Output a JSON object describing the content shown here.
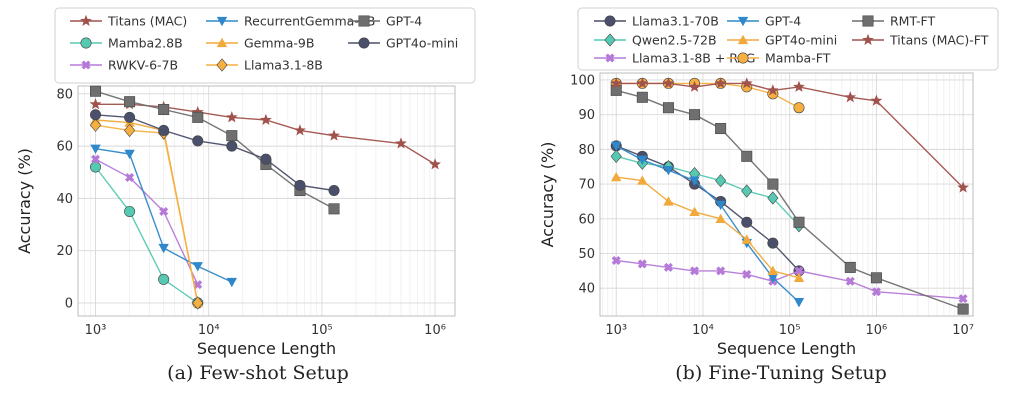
{
  "captions": [
    "(a) Few-shot Setup",
    "(b) Fine-Tuning Setup"
  ],
  "chart_data": [
    {
      "type": "line",
      "title": "",
      "xlabel": "Sequence Length",
      "ylabel": "Accuracy (%)",
      "xscale": "log",
      "xlim": [
        700,
        1500000
      ],
      "ylim": [
        -5,
        83
      ],
      "xticks": [
        1000,
        10000,
        100000,
        1000000
      ],
      "xtick_labels": [
        "10³",
        "10⁴",
        "10⁵",
        "10⁶"
      ],
      "yticks": [
        0,
        20,
        40,
        60,
        80
      ],
      "ytick_labels": [
        "0",
        "20",
        "40",
        "60",
        "80"
      ],
      "grid": true,
      "legend": "top, outside plot, 3 columns",
      "series": [
        {
          "name": "Titans (MAC)",
          "color": "#a0524c",
          "marker": "star",
          "x": [
            1000,
            2000,
            4000,
            8000,
            16000,
            32000,
            64000,
            128000,
            500000,
            1000000
          ],
          "y": [
            76,
            76,
            75,
            73,
            71,
            70,
            66,
            64,
            61,
            53
          ]
        },
        {
          "name": "Mamba2.8B",
          "color": "#56c9b2",
          "marker": "circle",
          "x": [
            1000,
            2000,
            4000,
            8000
          ],
          "y": [
            52,
            35,
            9,
            0
          ]
        },
        {
          "name": "RWKV-6-7B",
          "color": "#b57ad8",
          "marker": "plus",
          "x": [
            1000,
            2000,
            4000,
            8000
          ],
          "y": [
            55,
            48,
            35,
            7
          ]
        },
        {
          "name": "RecurrentGemma-9B",
          "color": "#2f88c9",
          "marker": "triangle-down",
          "x": [
            1000,
            2000,
            4000,
            8000,
            16000
          ],
          "y": [
            59,
            57,
            21,
            14,
            8
          ]
        },
        {
          "name": "Gemma-9B",
          "color": "#f0a93a",
          "marker": "triangle-up",
          "x": [
            1000,
            2000,
            4000,
            8000
          ],
          "y": [
            70,
            69,
            66,
            0
          ]
        },
        {
          "name": "Llama3.1-8B",
          "color": "#f5b041",
          "marker": "diamond",
          "x": [
            1000,
            2000,
            4000,
            8000
          ],
          "y": [
            68,
            66,
            65,
            0
          ]
        },
        {
          "name": "GPT-4",
          "color": "#6f6f6f",
          "marker": "square",
          "x": [
            1000,
            2000,
            4000,
            8000,
            16000,
            32000,
            64000,
            128000
          ],
          "y": [
            81,
            77,
            74,
            71,
            64,
            53,
            43,
            36
          ]
        },
        {
          "name": "GPT4o-mini",
          "color": "#4a4f6a",
          "marker": "circle",
          "x": [
            1000,
            2000,
            4000,
            8000,
            16000,
            32000,
            64000,
            128000
          ],
          "y": [
            72,
            71,
            66,
            62,
            60,
            55,
            45,
            43
          ]
        }
      ]
    },
    {
      "type": "line",
      "title": "",
      "xlabel": "Sequence Length",
      "ylabel": "Accuracy (%)",
      "xscale": "log",
      "xlim": [
        650,
        13000000
      ],
      "ylim": [
        32,
        102
      ],
      "xticks": [
        1000,
        10000,
        100000,
        1000000,
        10000000
      ],
      "xtick_labels": [
        "10³",
        "10⁴",
        "10⁵",
        "10⁶",
        "10⁷"
      ],
      "yticks": [
        40,
        50,
        60,
        70,
        80,
        90,
        100
      ],
      "ytick_labels": [
        "40",
        "50",
        "60",
        "70",
        "80",
        "90",
        "100"
      ],
      "grid": true,
      "legend": "top, outside plot, 3 columns",
      "series": [
        {
          "name": "Llama3.1-70B",
          "color": "#4a4f6a",
          "marker": "circle",
          "x": [
            1000,
            2000,
            4000,
            8000,
            16000,
            32000,
            64000,
            128000
          ],
          "y": [
            81,
            78,
            75,
            70,
            65,
            59,
            53,
            45
          ]
        },
        {
          "name": "Qwen2.5-72B",
          "color": "#56c9b2",
          "marker": "diamond",
          "x": [
            1000,
            2000,
            4000,
            8000,
            16000,
            32000,
            64000,
            128000
          ],
          "y": [
            78,
            76,
            75,
            73,
            71,
            68,
            66,
            58
          ]
        },
        {
          "name": "Llama3.1-8B + RAG",
          "color": "#b57ad8",
          "marker": "plus",
          "x": [
            1000,
            2000,
            4000,
            8000,
            16000,
            32000,
            64000,
            128000,
            500000,
            1000000,
            10000000
          ],
          "y": [
            48,
            47,
            46,
            45,
            45,
            44,
            42,
            45,
            42,
            39,
            37
          ]
        },
        {
          "name": "GPT-4",
          "color": "#2f88c9",
          "marker": "triangle-down",
          "x": [
            1000,
            2000,
            4000,
            8000,
            16000,
            32000,
            64000,
            128000
          ],
          "y": [
            81,
            77,
            74,
            71,
            64,
            53,
            43,
            36
          ]
        },
        {
          "name": "GPT4o-mini",
          "color": "#f0a93a",
          "marker": "triangle-up",
          "x": [
            1000,
            2000,
            4000,
            8000,
            16000,
            32000,
            64000,
            128000
          ],
          "y": [
            72,
            71,
            65,
            62,
            60,
            54,
            45,
            43
          ]
        },
        {
          "name": "Mamba-FT",
          "color": "#f5b041",
          "marker": "circle",
          "x": [
            1000,
            2000,
            4000,
            8000,
            16000,
            32000,
            64000,
            128000
          ],
          "y": [
            99,
            99,
            99,
            99,
            99,
            98,
            96,
            92
          ]
        },
        {
          "name": "RMT-FT",
          "color": "#6f6f6f",
          "marker": "square",
          "x": [
            1000,
            2000,
            4000,
            8000,
            16000,
            32000,
            64000,
            128000,
            500000,
            1000000,
            10000000
          ],
          "y": [
            97,
            95,
            92,
            90,
            86,
            78,
            70,
            59,
            46,
            43,
            34
          ]
        },
        {
          "name": "Titans (MAC)-FT",
          "color": "#a0524c",
          "marker": "star",
          "x": [
            1000,
            2000,
            4000,
            8000,
            16000,
            32000,
            64000,
            128000,
            500000,
            1000000,
            10000000
          ],
          "y": [
            99,
            99,
            99,
            98,
            99,
            99,
            97,
            98,
            95,
            94,
            69
          ]
        }
      ]
    }
  ]
}
